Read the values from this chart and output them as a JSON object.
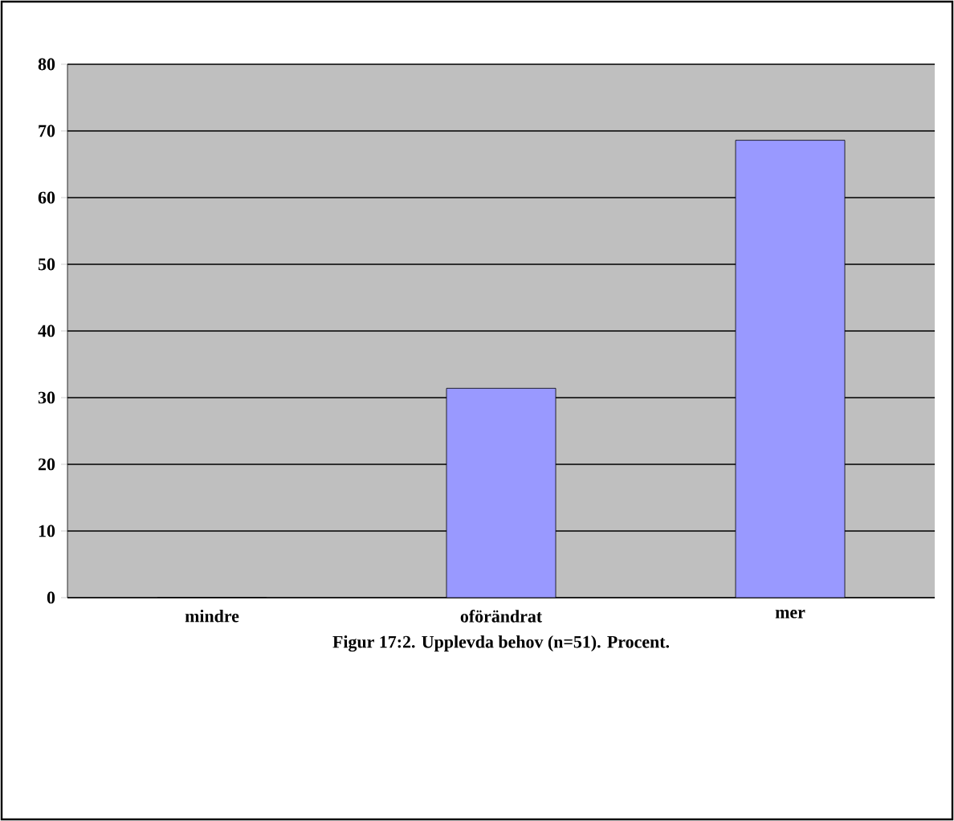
{
  "chart_data": {
    "type": "bar",
    "title": "Figur 17:2. Upplevda behov (n=51). Procent.",
    "categories": [
      "mindre",
      "oförändrat",
      "mer"
    ],
    "values": [
      0,
      31.4,
      68.6
    ],
    "color": "#9999ff",
    "ylim": [
      0,
      80
    ],
    "yticks": [
      0,
      10,
      20,
      30,
      40,
      50,
      60,
      70,
      80
    ],
    "grid": "y"
  }
}
